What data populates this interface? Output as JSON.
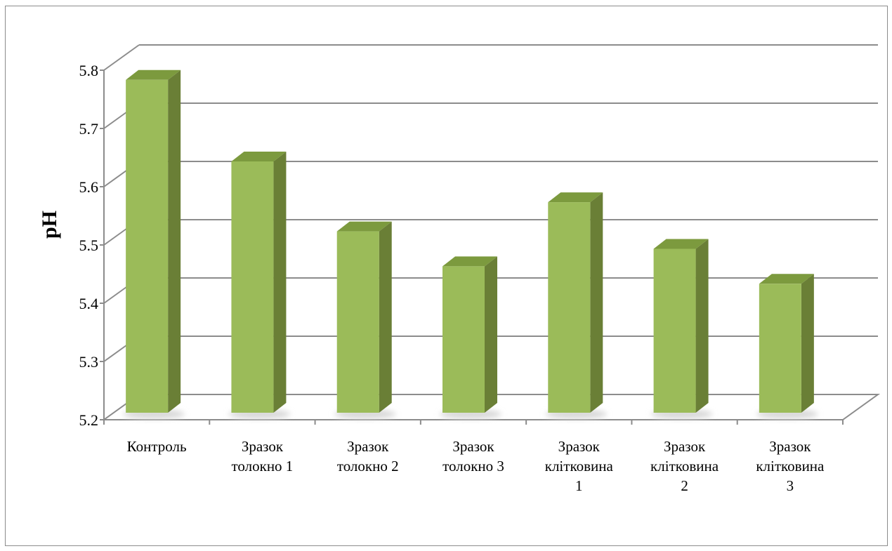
{
  "chart_data": {
    "type": "bar",
    "style": "3d-column",
    "categories": [
      [
        "Контроль"
      ],
      [
        "Зразок",
        "толокно 1"
      ],
      [
        "Зразок",
        "толокно 2"
      ],
      [
        "Зразок",
        "толокно 3"
      ],
      [
        "Зразок",
        "клітковина",
        "1"
      ],
      [
        "Зразок",
        "клітковина",
        "2"
      ],
      [
        "Зразок",
        "клітковина",
        "3"
      ]
    ],
    "values": [
      5.74,
      5.6,
      5.48,
      5.42,
      5.53,
      5.45,
      5.39
    ],
    "ylabel": "pH",
    "xlabel": "",
    "title": "",
    "ylim": [
      5.2,
      5.8
    ],
    "yticks": [
      "5.2",
      "5.3",
      "5.4",
      "5.5",
      "5.6",
      "5.7",
      "5.8"
    ],
    "grid": true,
    "legend": "none",
    "colors": {
      "bar_front": "#9bbb59",
      "bar_side": "#6a7f36",
      "bar_top": "#7c9a3e",
      "grid": "#8c8c8c",
      "shadow": "#d9d9d9"
    }
  }
}
